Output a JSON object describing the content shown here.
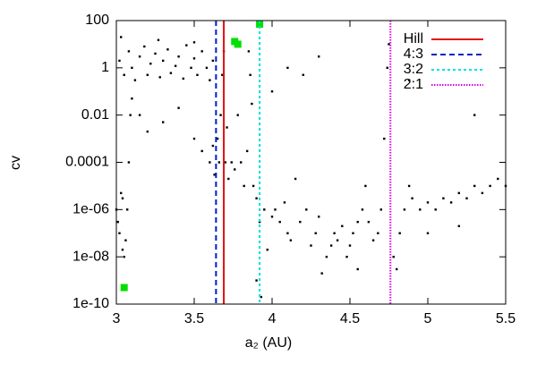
{
  "chart_data": {
    "type": "scatter",
    "xlabel": "a₂ (AU)",
    "ylabel": "cv",
    "xlim": [
      3,
      5.5
    ],
    "xticks": [
      3,
      3.5,
      4,
      4.5,
      5,
      5.5
    ],
    "ylim": [
      1e-10,
      100
    ],
    "log_y": true,
    "yticks": [
      100,
      1,
      0.01,
      0.0001,
      {
        "value": 1e-06,
        "label": "1e-06"
      },
      {
        "value": 1e-08,
        "label": "1e-08"
      },
      {
        "value": 1e-10,
        "label": "1e-10"
      }
    ],
    "points": {
      "color": "#000000",
      "x": [
        3.02,
        3.05,
        3.08,
        3.1,
        3.12,
        3.15,
        3.18,
        3.2,
        3.22,
        3.25,
        3.28,
        3.3,
        3.33,
        3.35,
        3.38,
        3.4,
        3.43,
        3.45,
        3.48,
        3.5,
        3.52,
        3.55,
        3.58,
        3.6,
        3.62,
        3.03,
        3.27,
        3.5,
        3.0,
        3.01,
        3.02,
        3.03,
        3.04,
        3.05,
        3.06,
        3.07,
        3.08,
        3.09,
        3.1,
        3.04,
        3.15,
        3.2,
        3.3,
        3.4,
        3.5,
        3.55,
        3.6,
        3.62,
        3.63,
        3.65,
        3.66,
        3.67,
        3.68,
        3.69,
        3.7,
        3.71,
        3.72,
        3.74,
        3.76,
        3.78,
        3.8,
        3.82,
        3.84,
        3.85,
        3.86,
        3.87,
        3.88,
        3.9,
        3.9,
        3.93,
        3.92,
        3.95,
        3.97,
        4.0,
        4.02,
        4.05,
        4.08,
        4.1,
        4.12,
        4.15,
        4.18,
        4.2,
        4.22,
        4.25,
        4.28,
        4.3,
        4.32,
        4.35,
        4.38,
        4.4,
        4.42,
        4.45,
        4.48,
        4.5,
        4.52,
        4.55,
        4.58,
        4.6,
        4.62,
        4.65,
        4.68,
        4.7,
        4.72,
        4.74,
        4.75,
        4.78,
        4.8,
        4.82,
        4.85,
        4.88,
        4.9,
        4.95,
        5.0,
        5.05,
        5.1,
        5.15,
        5.2,
        5.25,
        5.3,
        5.35,
        5.4,
        5.45,
        5.5,
        4.1,
        4.3,
        4.0,
        5.3,
        4.88,
        4.55,
        5.2,
        5.0
      ],
      "y": [
        2,
        0.5,
        5,
        1,
        0.3,
        3,
        8,
        0.5,
        1.5,
        4,
        0.4,
        2,
        6,
        0.6,
        1.2,
        3,
        0.35,
        9,
        1,
        2.5,
        0.5,
        5,
        1,
        0.3,
        2,
        20,
        15,
        12,
        1e-06,
        3e-07,
        1e-07,
        5e-06,
        2e-08,
        1e-08,
        5e-08,
        1e-06,
        0.0001,
        0.01,
        0.05,
        3e-06,
        0.01,
        0.002,
        0.005,
        0.02,
        0.001,
        0.0003,
        0.0001,
        0.0005,
        3e-05,
        0.001,
        0.0001,
        0.01,
        0.5,
        5,
        0.0001,
        0.003,
        2e-05,
        0.0001,
        5e-05,
        0.01,
        0.0001,
        1e-05,
        0.0003,
        5,
        0.5,
        0.03,
        1e-05,
        3e-06,
        1e-09,
        2e-10,
        3e-07,
        1e-06,
        2e-08,
        5e-07,
        1e-06,
        3e-07,
        2e-06,
        1e-07,
        5e-08,
        2e-05,
        3e-07,
        0.5,
        1e-06,
        3e-08,
        1e-07,
        5e-07,
        2e-09,
        1e-08,
        3e-08,
        1e-07,
        5e-08,
        2e-07,
        1e-08,
        3e-08,
        1e-07,
        3e-07,
        1e-06,
        1e-05,
        3e-07,
        5e-08,
        1e-07,
        1e-06,
        0.001,
        1,
        10,
        1e-08,
        3e-09,
        1e-07,
        1e-06,
        1e-05,
        3e-06,
        1e-06,
        2e-06,
        1e-06,
        3e-06,
        2e-06,
        5e-06,
        3e-06,
        1e-05,
        5e-06,
        1e-05,
        2e-05,
        1e-05,
        1,
        3,
        0.1,
        0.01,
        0.3,
        3e-09,
        2e-07,
        1e-07
      ]
    },
    "markers": {
      "color": "#00e000",
      "x": [
        3.05,
        3.76,
        3.78,
        3.92
      ],
      "y": [
        5e-10,
        13,
        10,
        70
      ]
    },
    "vlines": [
      {
        "name": "Hill",
        "x": 3.69,
        "color": "#e01010",
        "dash": "none"
      },
      {
        "name": "4:3",
        "x": 3.64,
        "color": "#0020c0",
        "dash": "6 4"
      },
      {
        "name": "3:2",
        "x": 3.92,
        "color": "#00e0e0",
        "dash": "3 3"
      },
      {
        "name": "2:1",
        "x": 4.76,
        "color": "#e000e0",
        "dash": "1.5 1.5"
      }
    ],
    "legend": "top-right"
  }
}
